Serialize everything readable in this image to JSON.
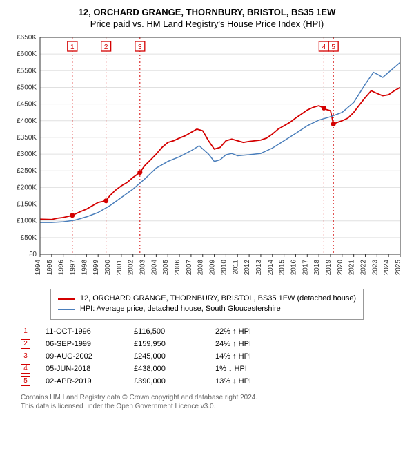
{
  "title": "12, ORCHARD GRANGE, THORNBURY, BRISTOL, BS35 1EW",
  "subtitle": "Price paid vs. HM Land Registry's House Price Index (HPI)",
  "chart": {
    "type": "line",
    "background": "#ffffff",
    "grid_color": "#e0e0e0",
    "border_color": "#333333",
    "x": {
      "min": 1994,
      "max": 2025,
      "ticks": [
        1994,
        1995,
        1996,
        1997,
        1998,
        1999,
        2000,
        2001,
        2002,
        2003,
        2004,
        2005,
        2006,
        2007,
        2008,
        2009,
        2010,
        2011,
        2012,
        2013,
        2014,
        2015,
        2016,
        2017,
        2018,
        2019,
        2020,
        2021,
        2022,
        2023,
        2024,
        2025
      ]
    },
    "y": {
      "min": 0,
      "max": 650000,
      "ticks": [
        0,
        50000,
        100000,
        150000,
        200000,
        250000,
        300000,
        350000,
        400000,
        450000,
        500000,
        550000,
        600000,
        650000
      ],
      "labels": [
        "£0",
        "£50K",
        "£100K",
        "£150K",
        "£200K",
        "£250K",
        "£300K",
        "£350K",
        "£400K",
        "£450K",
        "£500K",
        "£550K",
        "£600K",
        "£650K"
      ]
    },
    "series": [
      {
        "name": "property",
        "color": "#d40000",
        "width": 1.8,
        "points": [
          [
            1994.0,
            105000
          ],
          [
            1995.0,
            104000
          ],
          [
            1995.5,
            108000
          ],
          [
            1996.0,
            110000
          ],
          [
            1996.78,
            116500
          ],
          [
            1997.0,
            120000
          ],
          [
            1997.5,
            128000
          ],
          [
            1998.0,
            135000
          ],
          [
            1998.5,
            145000
          ],
          [
            1999.0,
            155000
          ],
          [
            1999.68,
            159950
          ],
          [
            2000.0,
            175000
          ],
          [
            2000.5,
            192000
          ],
          [
            2001.0,
            205000
          ],
          [
            2001.5,
            215000
          ],
          [
            2002.0,
            230000
          ],
          [
            2002.6,
            245000
          ],
          [
            2003.0,
            265000
          ],
          [
            2003.5,
            282000
          ],
          [
            2004.0,
            300000
          ],
          [
            2004.5,
            320000
          ],
          [
            2005.0,
            335000
          ],
          [
            2005.5,
            340000
          ],
          [
            2006.0,
            348000
          ],
          [
            2006.5,
            355000
          ],
          [
            2007.0,
            365000
          ],
          [
            2007.5,
            375000
          ],
          [
            2008.0,
            370000
          ],
          [
            2008.5,
            340000
          ],
          [
            2009.0,
            315000
          ],
          [
            2009.5,
            320000
          ],
          [
            2010.0,
            340000
          ],
          [
            2010.5,
            345000
          ],
          [
            2011.0,
            340000
          ],
          [
            2011.5,
            335000
          ],
          [
            2012.0,
            338000
          ],
          [
            2012.5,
            340000
          ],
          [
            2013.0,
            342000
          ],
          [
            2013.5,
            348000
          ],
          [
            2014.0,
            360000
          ],
          [
            2014.5,
            375000
          ],
          [
            2015.0,
            385000
          ],
          [
            2015.5,
            395000
          ],
          [
            2016.0,
            408000
          ],
          [
            2016.5,
            420000
          ],
          [
            2017.0,
            432000
          ],
          [
            2017.5,
            440000
          ],
          [
            2018.0,
            445000
          ],
          [
            2018.43,
            438000
          ],
          [
            2018.5,
            435000
          ],
          [
            2019.0,
            430000
          ],
          [
            2019.25,
            390000
          ],
          [
            2019.5,
            394000
          ],
          [
            2020.0,
            400000
          ],
          [
            2020.5,
            408000
          ],
          [
            2021.0,
            425000
          ],
          [
            2021.5,
            448000
          ],
          [
            2022.0,
            470000
          ],
          [
            2022.5,
            490000
          ],
          [
            2023.0,
            482000
          ],
          [
            2023.5,
            475000
          ],
          [
            2024.0,
            478000
          ],
          [
            2024.5,
            490000
          ],
          [
            2025.0,
            500000
          ]
        ]
      },
      {
        "name": "hpi",
        "color": "#4a7ebb",
        "width": 1.5,
        "points": [
          [
            1994.0,
            95000
          ],
          [
            1995.0,
            95000
          ],
          [
            1996.0,
            97000
          ],
          [
            1997.0,
            102000
          ],
          [
            1998.0,
            112000
          ],
          [
            1999.0,
            125000
          ],
          [
            2000.0,
            145000
          ],
          [
            2001.0,
            170000
          ],
          [
            2002.0,
            195000
          ],
          [
            2003.0,
            225000
          ],
          [
            2004.0,
            258000
          ],
          [
            2005.0,
            278000
          ],
          [
            2006.0,
            292000
          ],
          [
            2007.0,
            310000
          ],
          [
            2007.7,
            325000
          ],
          [
            2008.5,
            300000
          ],
          [
            2009.0,
            278000
          ],
          [
            2009.5,
            283000
          ],
          [
            2010.0,
            298000
          ],
          [
            2010.5,
            302000
          ],
          [
            2011.0,
            295000
          ],
          [
            2012.0,
            298000
          ],
          [
            2013.0,
            302000
          ],
          [
            2014.0,
            318000
          ],
          [
            2015.0,
            340000
          ],
          [
            2016.0,
            362000
          ],
          [
            2017.0,
            385000
          ],
          [
            2018.0,
            402000
          ],
          [
            2019.0,
            412000
          ],
          [
            2020.0,
            425000
          ],
          [
            2021.0,
            455000
          ],
          [
            2022.0,
            510000
          ],
          [
            2022.7,
            545000
          ],
          [
            2023.0,
            540000
          ],
          [
            2023.5,
            530000
          ],
          [
            2024.0,
            545000
          ],
          [
            2024.5,
            560000
          ],
          [
            2025.0,
            575000
          ]
        ]
      }
    ],
    "sale_markers": [
      {
        "n": 1,
        "x": 1996.78,
        "y": 116500
      },
      {
        "n": 2,
        "x": 1999.68,
        "y": 159950
      },
      {
        "n": 3,
        "x": 2002.6,
        "y": 245000
      },
      {
        "n": 4,
        "x": 2018.43,
        "y": 438000
      },
      {
        "n": 5,
        "x": 2019.25,
        "y": 390000
      }
    ],
    "sale_marker_top_offset": 0
  },
  "legend": [
    {
      "color": "#d40000",
      "label": "12, ORCHARD GRANGE, THORNBURY, BRISTOL, BS35 1EW (detached house)"
    },
    {
      "color": "#4a7ebb",
      "label": "HPI: Average price, detached house, South Gloucestershire"
    }
  ],
  "sales": [
    {
      "n": "1",
      "date": "11-OCT-1996",
      "price": "£116,500",
      "delta": "22% ↑ HPI"
    },
    {
      "n": "2",
      "date": "06-SEP-1999",
      "price": "£159,950",
      "delta": "24% ↑ HPI"
    },
    {
      "n": "3",
      "date": "09-AUG-2002",
      "price": "£245,000",
      "delta": "14% ↑ HPI"
    },
    {
      "n": "4",
      "date": "05-JUN-2018",
      "price": "£438,000",
      "delta": "1% ↓ HPI"
    },
    {
      "n": "5",
      "date": "02-APR-2019",
      "price": "£390,000",
      "delta": "13% ↓ HPI"
    }
  ],
  "marker_border": "#d40000",
  "footnote1": "Contains HM Land Registry data © Crown copyright and database right 2024.",
  "footnote2": "This data is licensed under the Open Government Licence v3.0."
}
